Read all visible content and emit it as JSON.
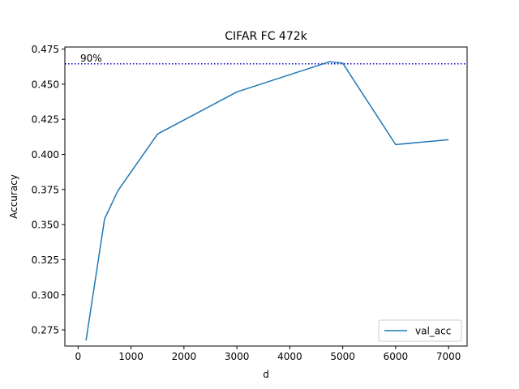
{
  "chart_data": {
    "type": "line",
    "title": "CIFAR FC 472k",
    "xlabel": "d",
    "ylabel": "Accuracy",
    "xlim": [
      -250,
      7350
    ],
    "ylim": [
      0.2635,
      0.4765
    ],
    "xticks": [
      0,
      1000,
      2000,
      3000,
      4000,
      5000,
      6000,
      7000
    ],
    "xtick_labels": [
      "0",
      "1000",
      "2000",
      "3000",
      "4000",
      "5000",
      "6000",
      "7000"
    ],
    "yticks": [
      0.275,
      0.3,
      0.325,
      0.35,
      0.375,
      0.4,
      0.425,
      0.45,
      0.475
    ],
    "ytick_labels": [
      "0.275",
      "0.300",
      "0.325",
      "0.350",
      "0.375",
      "0.400",
      "0.425",
      "0.450",
      "0.475"
    ],
    "grid": false,
    "legend_position": "lower-right",
    "series": [
      {
        "name": "val_acc",
        "color": "#1f77b4",
        "x": [
          150,
          500,
          750,
          1500,
          3000,
          4750,
          5000,
          6000,
          7000
        ],
        "y": [
          0.2675,
          0.354,
          0.374,
          0.4145,
          0.4445,
          0.466,
          0.465,
          0.407,
          0.4105
        ]
      }
    ],
    "reference_line": {
      "label": "90%",
      "y": 0.4645,
      "color": "#0000cc",
      "style": "dotted"
    }
  }
}
